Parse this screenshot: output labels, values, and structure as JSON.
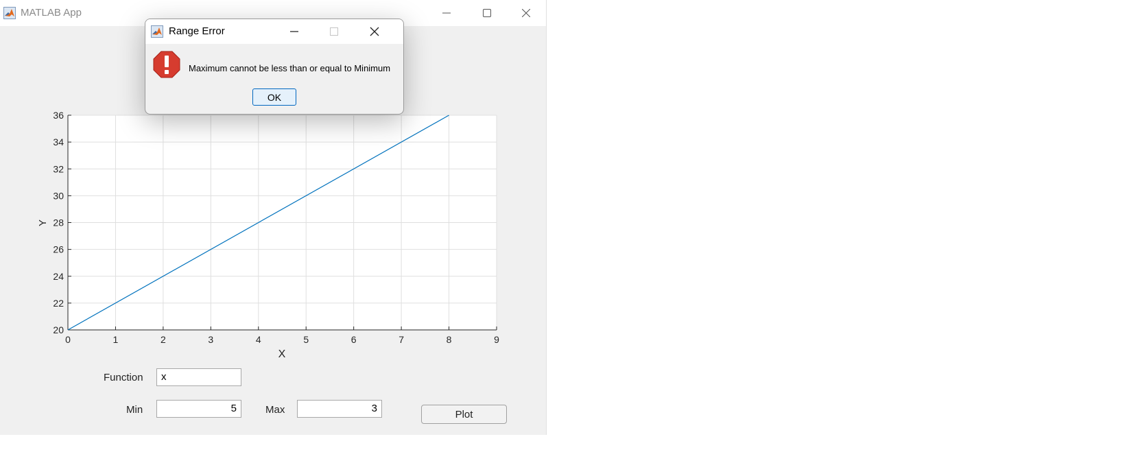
{
  "app": {
    "title": "MATLAB App",
    "icon": "matlab-icon",
    "window_controls": [
      "minimize-icon",
      "maximize-icon",
      "close-icon"
    ]
  },
  "chart_data": {
    "type": "line",
    "xlabel": "X",
    "ylabel": "Y",
    "xlim": [
      0,
      9
    ],
    "ylim": [
      20,
      36
    ],
    "xticks": [
      0,
      1,
      2,
      3,
      4,
      5,
      6,
      7,
      8,
      9
    ],
    "yticks": [
      20,
      22,
      24,
      26,
      28,
      30,
      32,
      34,
      36
    ],
    "grid": true,
    "series": [
      {
        "x": [
          0,
          8
        ],
        "y": [
          20,
          36
        ],
        "color": "#0072bd"
      }
    ]
  },
  "controls": {
    "function_label": "Function",
    "function_value": "x",
    "min_label": "Min",
    "min_value": "5",
    "max_label": "Max",
    "max_value": "3",
    "plot_label": "Plot"
  },
  "dialog": {
    "title": "Range Error",
    "icon": "matlab-icon",
    "error_icon": "error-icon",
    "message": "Maximum cannot be less than or equal to Minimum",
    "ok_label": "OK",
    "accent": "#0067c0",
    "error_color": "#d63c2f"
  }
}
